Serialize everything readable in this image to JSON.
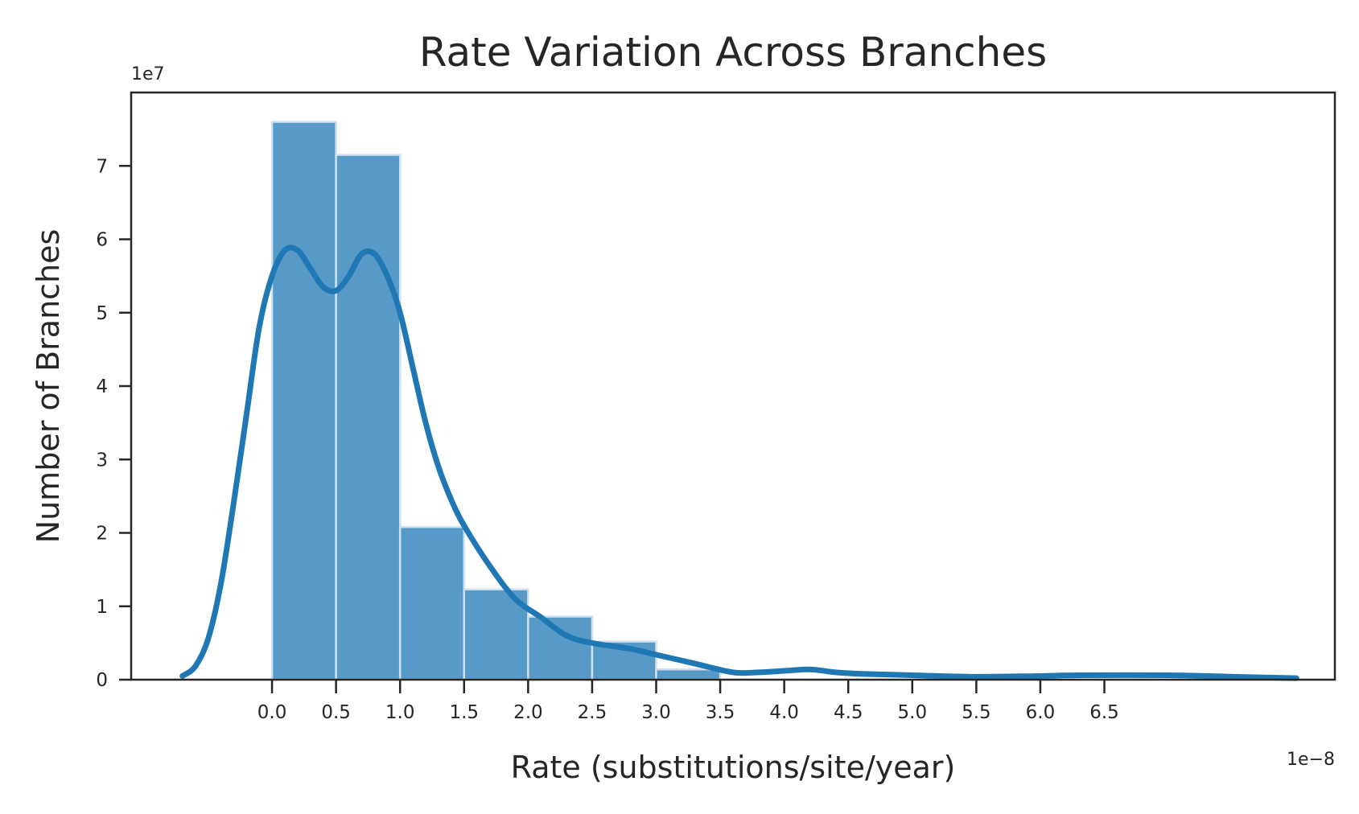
{
  "chart_data": {
    "type": "bar",
    "title": "Rate Variation Across Branches",
    "xlabel": "Rate (substitutions/site/year)",
    "ylabel": "Number of Branches",
    "x_offset_label": "1e−8",
    "y_offset_label": "1e7",
    "x_ticks": [
      0.0,
      0.5,
      1.0,
      1.5,
      2.0,
      2.5,
      3.0,
      3.5,
      4.0,
      4.5,
      5.0,
      5.5,
      6.0,
      6.5
    ],
    "x_tick_labels": [
      "0.0",
      "0.5",
      "1.0",
      "1.5",
      "2.0",
      "2.5",
      "3.0",
      "3.5",
      "4.0",
      "4.5",
      "5.0",
      "5.5",
      "6.0",
      "6.5"
    ],
    "y_ticks": [
      0,
      1,
      2,
      3,
      4,
      5,
      6,
      7
    ],
    "y_tick_labels": [
      "0",
      "1",
      "2",
      "3",
      "4",
      "5",
      "6",
      "7"
    ],
    "xlim": [
      -1.1,
      8.3
    ],
    "ylim": [
      0,
      8.0
    ],
    "bars": [
      {
        "x0": 0.0,
        "x1": 0.5,
        "value": 7.6
      },
      {
        "x0": 0.5,
        "x1": 1.0,
        "value": 7.15
      },
      {
        "x0": 1.0,
        "x1": 1.5,
        "value": 2.08
      },
      {
        "x0": 1.5,
        "x1": 2.0,
        "value": 1.23
      },
      {
        "x0": 2.0,
        "x1": 2.5,
        "value": 0.86
      },
      {
        "x0": 2.5,
        "x1": 3.0,
        "value": 0.52
      },
      {
        "x0": 3.0,
        "x1": 3.5,
        "value": 0.14
      }
    ],
    "kde_curve": {
      "x": [
        -0.7,
        -0.6,
        -0.5,
        -0.4,
        -0.3,
        -0.2,
        -0.1,
        0.0,
        0.1,
        0.2,
        0.3,
        0.4,
        0.5,
        0.6,
        0.7,
        0.8,
        0.9,
        1.0,
        1.1,
        1.2,
        1.3,
        1.4,
        1.5,
        1.7,
        1.9,
        2.1,
        2.3,
        2.5,
        2.8,
        3.0,
        3.3,
        3.6,
        3.8,
        4.0,
        4.2,
        4.4,
        4.6,
        5.0,
        5.5,
        6.0,
        6.3,
        7.0,
        7.5,
        8.0
      ],
      "y": [
        0.05,
        0.18,
        0.55,
        1.3,
        2.4,
        3.6,
        4.8,
        5.5,
        5.85,
        5.85,
        5.6,
        5.35,
        5.3,
        5.5,
        5.8,
        5.8,
        5.5,
        5.0,
        4.25,
        3.5,
        2.9,
        2.45,
        2.1,
        1.55,
        1.1,
        0.85,
        0.6,
        0.5,
        0.42,
        0.34,
        0.22,
        0.1,
        0.1,
        0.12,
        0.14,
        0.1,
        0.08,
        0.06,
        0.04,
        0.05,
        0.06,
        0.06,
        0.04,
        0.02
      ]
    },
    "colors": {
      "bar_fill": "#5799c7",
      "bar_edge": "#cfe0ee",
      "curve": "#1f77b4",
      "axes": "#262626",
      "text": "#262626"
    },
    "grid": false,
    "legend": "none"
  }
}
